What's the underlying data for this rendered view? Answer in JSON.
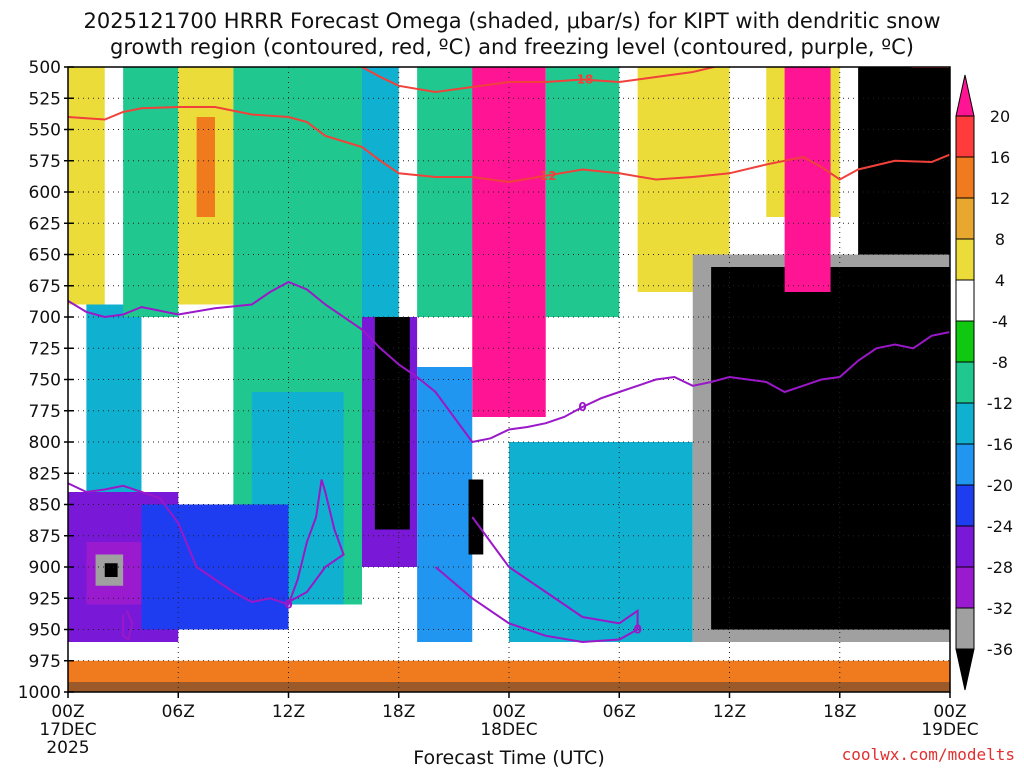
{
  "title": {
    "line1": "2025121700 HRRR Forecast Omega (shaded, μbar/s) for KIPT with dendritic snow",
    "line2": "growth region (contoured, red, ºC) and freezing level (contoured, purple, ºC)"
  },
  "credit": "coolwx.com/modelts",
  "chart_data": {
    "type": "heatmap",
    "xlabel": "Forecast Time (UTC)",
    "ylabel": "",
    "x_ticks": [
      {
        "hour": 0,
        "lines": [
          "00Z",
          "17DEC",
          "2025"
        ]
      },
      {
        "hour": 6,
        "lines": [
          "06Z"
        ]
      },
      {
        "hour": 12,
        "lines": [
          "12Z"
        ]
      },
      {
        "hour": 18,
        "lines": [
          "18Z"
        ]
      },
      {
        "hour": 24,
        "lines": [
          "00Z",
          "18DEC"
        ]
      },
      {
        "hour": 30,
        "lines": [
          "06Z"
        ]
      },
      {
        "hour": 36,
        "lines": [
          "12Z"
        ]
      },
      {
        "hour": 42,
        "lines": [
          "18Z"
        ]
      },
      {
        "hour": 48,
        "lines": [
          "00Z",
          "19DEC"
        ]
      }
    ],
    "xlim": [
      0,
      48
    ],
    "y_ticks": [
      500,
      525,
      550,
      575,
      600,
      625,
      650,
      675,
      700,
      725,
      750,
      775,
      800,
      825,
      850,
      875,
      900,
      925,
      950,
      975,
      1000
    ],
    "ylim": [
      1000,
      500
    ],
    "grid": true,
    "colorbar": {
      "labels": [
        "20",
        "16",
        "12",
        "8",
        "4",
        "-4",
        "-8",
        "-12",
        "-16",
        "-20",
        "-24",
        "-28",
        "-32",
        "-36"
      ],
      "colors": [
        "#ff1493",
        "#ff3b3b",
        "#f07a1e",
        "#e8a830",
        "#ecdc3a",
        "#ffffff",
        "#0fc80f",
        "#20c890",
        "#10b0d0",
        "#2096f0",
        "#1e3cf0",
        "#7a18d8",
        "#9a1ad0",
        "#a0a0a0",
        "#000000"
      ]
    },
    "omega_cells": [
      {
        "t0": 0,
        "t1": 2,
        "p0": 500,
        "p1": 690,
        "level": "4"
      },
      {
        "t0": 1,
        "t1": 4,
        "p0": 690,
        "p1": 850,
        "level": "-12"
      },
      {
        "t0": 0,
        "t1": 6,
        "p0": 840,
        "p1": 960,
        "level": "-24"
      },
      {
        "t0": 1,
        "t1": 4,
        "p0": 880,
        "p1": 930,
        "level": "-28"
      },
      {
        "t0": 1.5,
        "t1": 3,
        "p0": 890,
        "p1": 915,
        "level": "-32"
      },
      {
        "t0": 2,
        "t1": 2.7,
        "p0": 897,
        "p1": 908,
        "level": "-36"
      },
      {
        "t0": 3,
        "t1": 6,
        "p0": 500,
        "p1": 700,
        "level": "-8"
      },
      {
        "t0": 6,
        "t1": 9,
        "p0": 500,
        "p1": 690,
        "level": "4"
      },
      {
        "t0": 7,
        "t1": 8,
        "p0": 540,
        "p1": 620,
        "level": "12"
      },
      {
        "t0": 9,
        "t1": 16,
        "p0": 500,
        "p1": 930,
        "level": "-8"
      },
      {
        "t0": 10,
        "t1": 15,
        "p0": 760,
        "p1": 930,
        "level": "-12"
      },
      {
        "t0": 4,
        "t1": 12,
        "p0": 850,
        "p1": 950,
        "level": "-20"
      },
      {
        "t0": 16,
        "t1": 18,
        "p0": 500,
        "p1": 840,
        "level": "-12"
      },
      {
        "t0": 16,
        "t1": 19,
        "p0": 700,
        "p1": 900,
        "level": "-24"
      },
      {
        "t0": 16.7,
        "t1": 18.6,
        "p0": 700,
        "p1": 870,
        "level": "-36"
      },
      {
        "t0": 19,
        "t1": 23,
        "p0": 500,
        "p1": 700,
        "level": "-8"
      },
      {
        "t0": 22,
        "t1": 26,
        "p0": 500,
        "p1": 780,
        "level": "20"
      },
      {
        "t0": 19,
        "t1": 22,
        "p0": 740,
        "p1": 960,
        "level": "-16"
      },
      {
        "t0": 21.8,
        "t1": 22.6,
        "p0": 830,
        "p1": 890,
        "level": "-36"
      },
      {
        "t0": 24,
        "t1": 34,
        "p0": 800,
        "p1": 960,
        "level": "-12"
      },
      {
        "t0": 26,
        "t1": 30,
        "p0": 500,
        "p1": 700,
        "level": "-8"
      },
      {
        "t0": 31,
        "t1": 36,
        "p0": 500,
        "p1": 680,
        "level": "4"
      },
      {
        "t0": 34,
        "t1": 48,
        "p0": 650,
        "p1": 960,
        "level": "-32"
      },
      {
        "t0": 35,
        "t1": 48,
        "p0": 660,
        "p1": 950,
        "level": "-36"
      },
      {
        "t0": 38,
        "t1": 42,
        "p0": 500,
        "p1": 620,
        "level": "4"
      },
      {
        "t0": 39,
        "t1": 41.5,
        "p0": 500,
        "p1": 680,
        "level": "20"
      },
      {
        "t0": 43,
        "t1": 48,
        "p0": 500,
        "p1": 650,
        "level": "-36"
      },
      {
        "t0": 0,
        "t1": 48,
        "p0": 975,
        "p1": 1000,
        "level": "12"
      }
    ],
    "dgz_contours": [
      {
        "label": "-12",
        "points": [
          [
            0,
            540
          ],
          [
            1,
            541
          ],
          [
            2,
            542
          ],
          [
            3,
            536
          ],
          [
            4,
            533
          ],
          [
            6,
            532
          ],
          [
            8,
            532
          ],
          [
            10,
            538
          ],
          [
            12,
            540
          ],
          [
            13,
            544
          ],
          [
            14,
            555
          ],
          [
            16,
            564
          ],
          [
            17,
            575
          ],
          [
            18,
            585
          ],
          [
            20,
            588
          ],
          [
            22,
            588
          ],
          [
            24,
            592
          ],
          [
            26,
            587
          ],
          [
            28,
            582
          ],
          [
            30,
            585
          ],
          [
            32,
            590
          ],
          [
            34,
            588
          ],
          [
            36,
            585
          ],
          [
            38,
            578
          ],
          [
            40,
            572
          ],
          [
            41,
            580
          ],
          [
            42,
            590
          ],
          [
            43,
            582
          ],
          [
            45,
            575
          ],
          [
            47,
            576
          ],
          [
            48,
            570
          ]
        ]
      },
      {
        "label": "-18",
        "points": [
          [
            16,
            500
          ],
          [
            17,
            508
          ],
          [
            18,
            515
          ],
          [
            20,
            520
          ],
          [
            22,
            516
          ],
          [
            24,
            512
          ],
          [
            26,
            512
          ],
          [
            28,
            510
          ],
          [
            30,
            512
          ],
          [
            32,
            508
          ],
          [
            34,
            504
          ],
          [
            36,
            497
          ],
          [
            38,
            488
          ],
          [
            40,
            478
          ]
        ]
      },
      {
        "label": "",
        "points": [
          [
            44,
            496
          ],
          [
            46,
            500
          ],
          [
            48,
            500
          ]
        ]
      }
    ],
    "freezing_contours": [
      {
        "label": "0",
        "points": [
          [
            0,
            687
          ],
          [
            1,
            696
          ],
          [
            2,
            700
          ],
          [
            3,
            698
          ],
          [
            4,
            692
          ],
          [
            6,
            698
          ],
          [
            8,
            693
          ],
          [
            10,
            690
          ],
          [
            11,
            680
          ],
          [
            12,
            672
          ],
          [
            13,
            678
          ],
          [
            14,
            690
          ],
          [
            16,
            710
          ],
          [
            17,
            725
          ],
          [
            18,
            738
          ],
          [
            19,
            748
          ],
          [
            20,
            760
          ],
          [
            21,
            780
          ],
          [
            22,
            800
          ],
          [
            23,
            797
          ],
          [
            24,
            790
          ],
          [
            25,
            788
          ],
          [
            26,
            785
          ],
          [
            27,
            780
          ],
          [
            28,
            772
          ],
          [
            29,
            765
          ],
          [
            30,
            760
          ],
          [
            31,
            755
          ],
          [
            32,
            750
          ],
          [
            33,
            748
          ],
          [
            34,
            755
          ],
          [
            35,
            752
          ],
          [
            36,
            748
          ],
          [
            37,
            750
          ],
          [
            38,
            752
          ],
          [
            39,
            760
          ],
          [
            40,
            755
          ],
          [
            41,
            750
          ],
          [
            42,
            748
          ],
          [
            43,
            735
          ],
          [
            44,
            725
          ],
          [
            45,
            722
          ],
          [
            46,
            725
          ],
          [
            47,
            715
          ],
          [
            48,
            712
          ]
        ]
      },
      {
        "label": "0",
        "points": [
          [
            0,
            833
          ],
          [
            1,
            840
          ],
          [
            2,
            838
          ],
          [
            3,
            835
          ],
          [
            4,
            840
          ],
          [
            5,
            845
          ],
          [
            6,
            865
          ],
          [
            7,
            900
          ],
          [
            8,
            910
          ],
          [
            9,
            920
          ],
          [
            10,
            928
          ],
          [
            11,
            925
          ],
          [
            12,
            930
          ],
          [
            12.5,
            910
          ],
          [
            13,
            880
          ],
          [
            13.5,
            860
          ],
          [
            13.8,
            830
          ],
          [
            14,
            840
          ],
          [
            14.5,
            870
          ],
          [
            15,
            890
          ],
          [
            14,
            900
          ],
          [
            13,
            920
          ],
          [
            12,
            928
          ]
        ]
      },
      {
        "label": "0",
        "points": [
          [
            22,
            860
          ],
          [
            23,
            880
          ],
          [
            24,
            900
          ],
          [
            26,
            920
          ],
          [
            28,
            940
          ],
          [
            30,
            945
          ],
          [
            31,
            935
          ],
          [
            31,
            950
          ],
          [
            30,
            958
          ],
          [
            28,
            960
          ],
          [
            26,
            955
          ],
          [
            24,
            945
          ],
          [
            22,
            925
          ],
          [
            20,
            900
          ]
        ]
      },
      {
        "label": "",
        "points": [
          [
            3,
            938
          ],
          [
            3,
            955
          ],
          [
            3.3,
            958
          ],
          [
            3.5,
            945
          ],
          [
            3.2,
            935
          ]
        ]
      }
    ]
  }
}
